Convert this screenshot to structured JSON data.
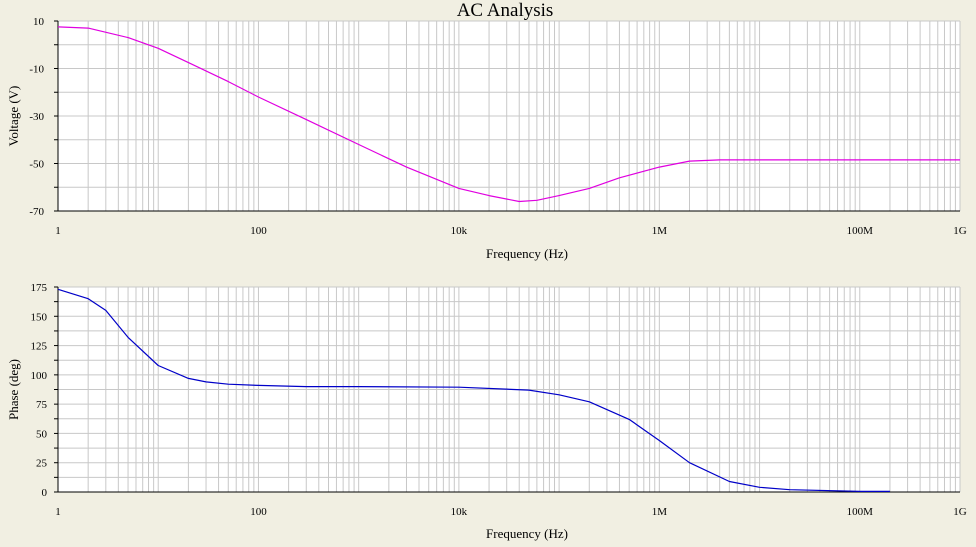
{
  "title": "AC Analysis",
  "colors": {
    "background": "#f1efe2",
    "plot_background": "#ffffff",
    "grid": "#c8c8c8",
    "magnitude_trace": "#e000e0",
    "phase_trace": "#0000c8"
  },
  "chart_data": [
    {
      "type": "line",
      "xscale": "log",
      "xlabel": "Frequency (Hz)",
      "ylabel": "Voltage (V)",
      "xlim": [
        1,
        1000000000
      ],
      "ylim": [
        -70,
        10
      ],
      "grid": true,
      "x_ticks": [
        {
          "value": 1,
          "label": "1"
        },
        {
          "value": 100,
          "label": "100"
        },
        {
          "value": 10000,
          "label": "10k"
        },
        {
          "value": 1000000,
          "label": "1M"
        },
        {
          "value": 100000000,
          "label": "100M"
        },
        {
          "value": 1000000000,
          "label": "1G"
        }
      ],
      "y_ticks": [
        {
          "value": 10,
          "label": "10"
        },
        {
          "value": -10,
          "label": "-10"
        },
        {
          "value": -30,
          "label": "-30"
        },
        {
          "value": -50,
          "label": "-50"
        },
        {
          "value": -70,
          "label": "-70"
        }
      ],
      "series": [
        {
          "color": "#e000e0",
          "x": [
            1,
            2,
            5,
            10,
            20,
            50,
            100,
            300,
            1000,
            3000,
            10000,
            20000,
            40000,
            60000,
            100000,
            200000,
            400000,
            1000000,
            2000000,
            4000000,
            10000000,
            100000000,
            1000000000
          ],
          "y": [
            7.5,
            7,
            3,
            -1.5,
            -7.5,
            -15.5,
            -22,
            -31.5,
            -42,
            -51.5,
            -60.5,
            -63.5,
            -66,
            -65.5,
            -63.5,
            -60.5,
            -56,
            -51.5,
            -49,
            -48.5,
            -48.5,
            -48.5,
            -48.5
          ]
        }
      ]
    },
    {
      "type": "line",
      "xscale": "log",
      "xlabel": "Frequency (Hz)",
      "ylabel": "Phase (deg)",
      "xlim": [
        1,
        1000000000
      ],
      "ylim": [
        0,
        175
      ],
      "grid": true,
      "x_ticks": [
        {
          "value": 1,
          "label": "1"
        },
        {
          "value": 100,
          "label": "100"
        },
        {
          "value": 10000,
          "label": "10k"
        },
        {
          "value": 1000000,
          "label": "1M"
        },
        {
          "value": 100000000,
          "label": "100M"
        },
        {
          "value": 1000000000,
          "label": "1G"
        }
      ],
      "y_ticks": [
        {
          "value": 175,
          "label": "175"
        },
        {
          "value": 150,
          "label": "150"
        },
        {
          "value": 125,
          "label": "125"
        },
        {
          "value": 100,
          "label": "100"
        },
        {
          "value": 75,
          "label": "75"
        },
        {
          "value": 50,
          "label": "50"
        },
        {
          "value": 25,
          "label": "25"
        },
        {
          "value": 0,
          "label": "0"
        }
      ],
      "series": [
        {
          "color": "#0000c8",
          "x": [
            1,
            2,
            3,
            5,
            10,
            20,
            30,
            50,
            100,
            300,
            1000,
            10000,
            50000,
            100000,
            200000,
            500000,
            1000000,
            2000000,
            5000000,
            10000000,
            20000000,
            100000000,
            200000000
          ],
          "y": [
            173,
            165,
            155,
            132,
            108,
            97,
            94,
            92,
            91,
            90,
            90,
            89.5,
            87,
            83,
            77,
            62,
            44,
            25,
            9,
            4,
            2,
            0.5,
            0.5
          ]
        }
      ]
    }
  ]
}
